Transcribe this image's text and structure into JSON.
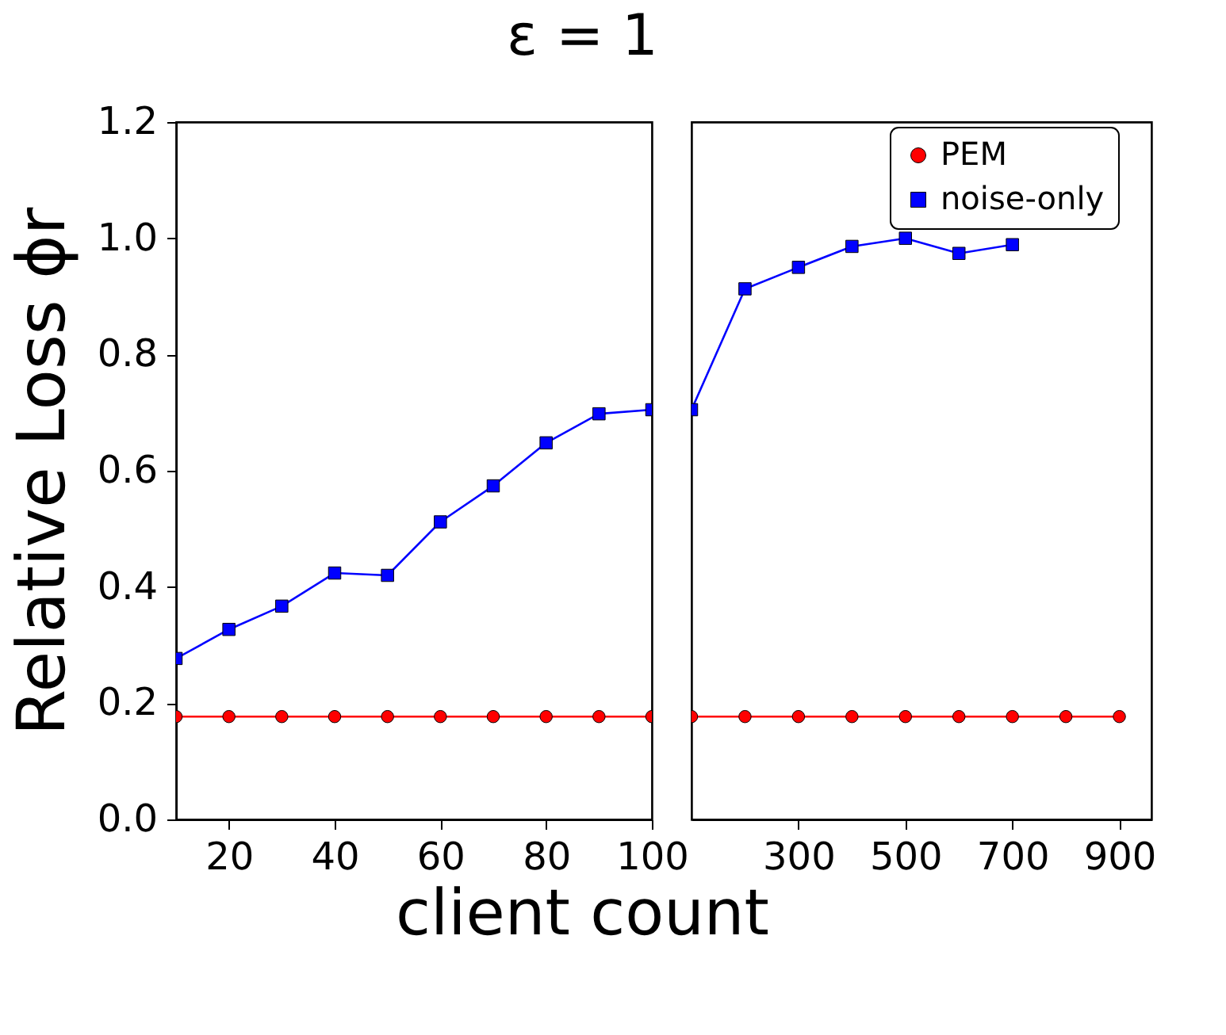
{
  "chart_data": [
    {
      "type": "line",
      "title": "ε = 1",
      "xlabel": "client count",
      "ylabel": "Relative Loss ϕr",
      "xlim": [
        10,
        100
      ],
      "xticks": [
        20,
        40,
        60,
        80,
        100
      ],
      "ylim": [
        0,
        1.2
      ],
      "yticks": [
        {
          "value": 0,
          "label": "0.0"
        },
        0.2,
        0.4,
        0.6,
        0.8,
        {
          "value": 1,
          "label": "1.0"
        },
        1.2
      ],
      "grid": false,
      "legend": false,
      "series": [
        {
          "color": "#ff0000",
          "marker": "circle",
          "x": [
            10,
            20,
            30,
            40,
            50,
            60,
            70,
            80,
            90,
            100
          ],
          "values": [
            0.177,
            0.177,
            0.177,
            0.177,
            0.177,
            0.177,
            0.177,
            0.177,
            0.177,
            0.177
          ]
        },
        {
          "color": "#0000ff",
          "marker": "square",
          "x": [
            10,
            20,
            30,
            40,
            50,
            60,
            70,
            80,
            90,
            100
          ],
          "values": [
            0.277,
            0.327,
            0.367,
            0.424,
            0.42,
            0.512,
            0.574,
            0.648,
            0.698,
            0.705
          ]
        }
      ]
    },
    {
      "type": "line",
      "xlim": [
        100,
        960
      ],
      "xticks": [
        300,
        500,
        700,
        900
      ],
      "ylim": [
        0,
        1.2
      ],
      "yticks": [
        0,
        0.2,
        0.4,
        0.6,
        0.8,
        1,
        1.2
      ],
      "grid": false,
      "legend": "top right",
      "tick_labels": "x",
      "series": [
        {
          "name": "PEM",
          "color": "#ff0000",
          "marker": "circle",
          "x": [
            100,
            200,
            300,
            400,
            500,
            600,
            700,
            800,
            900
          ],
          "values": [
            0.177,
            0.177,
            0.177,
            0.177,
            0.177,
            0.177,
            0.177,
            0.177,
            0.177
          ]
        },
        {
          "name": "noise-only",
          "color": "#0000ff",
          "marker": "square",
          "x": [
            100,
            200,
            300,
            400,
            500,
            600,
            700
          ],
          "values": [
            0.705,
            0.913,
            0.95,
            0.986,
            1.0,
            0.974,
            0.989
          ]
        }
      ]
    }
  ]
}
